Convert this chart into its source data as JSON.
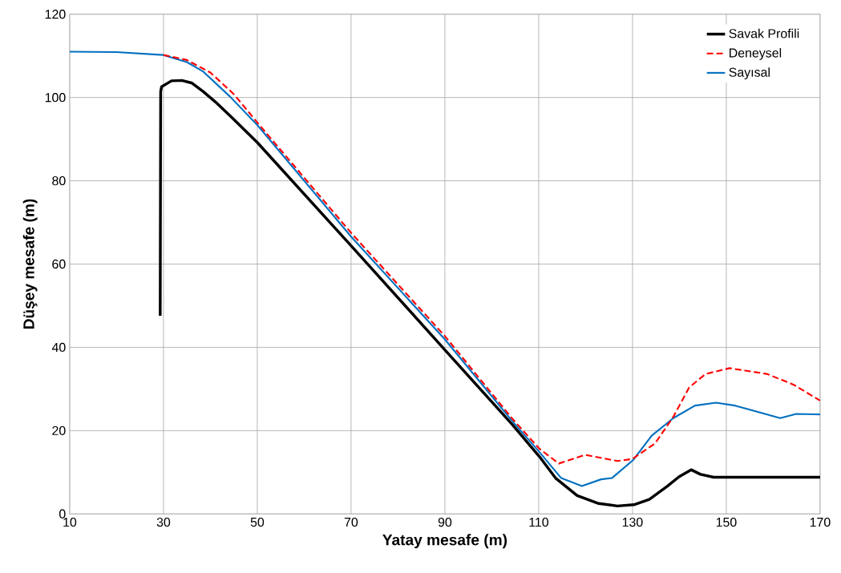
{
  "chart_data": {
    "type": "line",
    "xlabel": "Yatay mesafe (m)",
    "ylabel": "Düşey mesafe (m)",
    "xlim": [
      10,
      170
    ],
    "ylim": [
      0,
      120
    ],
    "xticks": [
      10,
      30,
      50,
      70,
      90,
      110,
      130,
      150,
      170
    ],
    "yticks": [
      0,
      20,
      40,
      60,
      80,
      100,
      120
    ],
    "grid": true,
    "legend": "top right",
    "marker": "none",
    "series": [
      {
        "name": "Savak Profili",
        "color": "#000000",
        "line_style": "solid",
        "x": [
          29.3,
          29.4,
          29.6,
          31.7,
          33.9,
          36,
          38.5,
          41,
          44.2,
          50,
          70,
          90,
          104.5,
          110.2,
          113.6,
          118.2,
          122.8,
          126.8,
          130.3,
          133.6,
          137.5,
          139.9,
          142.5,
          144.5,
          147.3,
          160,
          170
        ],
        "values": [
          47.6,
          101.4,
          102.6,
          104,
          104.1,
          103.5,
          101.4,
          99,
          95.6,
          89.2,
          64.4,
          39.4,
          21.3,
          13.7,
          8.6,
          4.4,
          2.5,
          1.9,
          2.2,
          3.5,
          6.7,
          8.9,
          10.6,
          9.5,
          8.8,
          8.8,
          8.8
        ]
      },
      {
        "name": "Deneysel",
        "color": "#ff0000",
        "line_style": "dashed",
        "x": [
          30,
          35,
          40,
          45,
          50,
          70,
          90,
          104.5,
          110.2,
          114.3,
          119.9,
          126.8,
          130,
          134.8,
          138.7,
          142.1,
          145.6,
          150.7,
          158.7,
          164.4,
          170
        ],
        "values": [
          110.2,
          109,
          106,
          100.8,
          94,
          67.5,
          42.7,
          22.7,
          15.6,
          12.1,
          14.2,
          12.7,
          13.2,
          16.9,
          23.3,
          30.4,
          33.6,
          35,
          33.6,
          31,
          27.2
        ]
      },
      {
        "name": "Sayısal",
        "color": "#0070c0",
        "line_style": "solid",
        "x": [
          10,
          20,
          30,
          35,
          38.5,
          44.2,
          50,
          70,
          90,
          104.5,
          110.2,
          114.8,
          119.2,
          123.3,
          125.6,
          130.2,
          134.1,
          138.7,
          143.3,
          147.8,
          151.9,
          161.5,
          164.9,
          170
        ],
        "values": [
          111,
          110.9,
          110.2,
          108.5,
          106.2,
          100.2,
          93.4,
          66.6,
          41.9,
          22.1,
          14.8,
          8.6,
          6.7,
          8.3,
          8.6,
          13,
          18.8,
          23,
          26,
          26.7,
          26,
          23,
          24,
          23.9
        ]
      }
    ]
  }
}
